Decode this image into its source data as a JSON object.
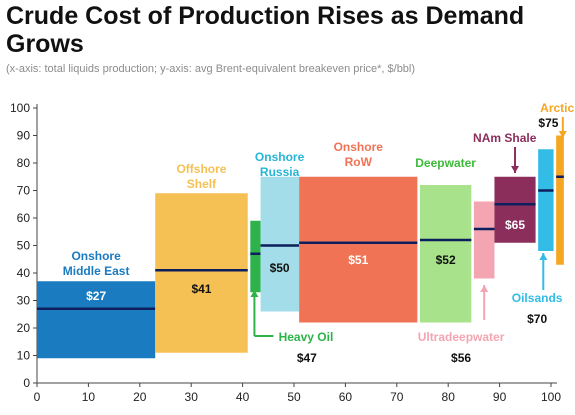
{
  "title": "Crude Cost of Production Rises as Demand Grows",
  "subtitle": "(x-axis: total liquids production; y-axis: avg Brent-equivalent breakeven price*, $/bbl)",
  "chart_data": {
    "type": "bar",
    "subtype": "cost-curve (variable-width floating bars)",
    "xlim": [
      0,
      100
    ],
    "ylim": [
      0,
      100
    ],
    "x_ticks": [
      "0",
      "10",
      "20",
      "30",
      "40",
      "50",
      "60",
      "70",
      "80",
      "90",
      "100"
    ],
    "y_ticks": [
      "0",
      "10",
      "20",
      "30",
      "40",
      "50",
      "60",
      "70",
      "80",
      "90",
      "100"
    ],
    "grid": false,
    "segments": [
      {
        "label": "Onshore Middle East",
        "price_label": "$27",
        "x0": 0,
        "x1": 23,
        "low": 9,
        "high": 37,
        "avg": 27,
        "color": "#1A7BC0"
      },
      {
        "label": "Offshore Shelf",
        "price_label": "$41",
        "x0": 23,
        "x1": 41,
        "low": 11,
        "high": 69,
        "avg": 41,
        "color": "#F5C155"
      },
      {
        "label": "Heavy Oil",
        "price_label": "$47",
        "x0": 41.5,
        "x1": 43.5,
        "low": 33,
        "high": 59,
        "avg": 47,
        "color": "#2DB34A"
      },
      {
        "label": "Onshore Russia",
        "price_label": "$50",
        "x0": 43.5,
        "x1": 51,
        "low": 26,
        "high": 75,
        "avg": 50,
        "color": "#A3DDE9"
      },
      {
        "label": "Onshore RoW",
        "price_label": "$51",
        "x0": 51,
        "x1": 74,
        "low": 22,
        "high": 75,
        "avg": 51,
        "color": "#F07355"
      },
      {
        "label": "Deepwater",
        "price_label": "$52",
        "x0": 74.5,
        "x1": 84.5,
        "low": 22,
        "high": 72,
        "avg": 52,
        "color": "#A8E28A"
      },
      {
        "label": "Ultradeepwater",
        "price_label": "$56",
        "x0": 85,
        "x1": 89,
        "low": 38,
        "high": 66,
        "avg": 56,
        "color": "#F4A5B2"
      },
      {
        "label": "NAm Shale",
        "price_label": "$65",
        "x0": 89,
        "x1": 97,
        "low": 51,
        "high": 75,
        "avg": 65,
        "color": "#8B2E5C"
      },
      {
        "label": "Oilsands",
        "price_label": "$70",
        "x0": 97.5,
        "x1": 100.5,
        "low": 48,
        "high": 85,
        "avg": 70,
        "color": "#33BCE6"
      },
      {
        "label": "Arctic",
        "price_label": "$75",
        "x0": 101,
        "x1": 102.5,
        "low": 43,
        "high": 90,
        "avg": 75,
        "color": "#F5A623"
      }
    ],
    "annotations": {
      "onshore_middle_east": [
        "Onshore",
        "Middle East"
      ],
      "offshore_shelf": [
        "Offshore",
        "Shelf"
      ],
      "onshore_russia": [
        "Onshore",
        "Russia"
      ],
      "onshore_row": [
        "Onshore",
        "RoW"
      ],
      "deepwater": [
        "Deepwater"
      ],
      "nam_shale": [
        "NAm Shale"
      ],
      "arctic": [
        "Arctic"
      ],
      "heavy_oil": [
        "Heavy Oil"
      ],
      "ultradeepwater": [
        "Ultradeepwater"
      ],
      "oilsands": [
        "Oilsands"
      ]
    },
    "avg_line_color": "#0D1F5C"
  }
}
